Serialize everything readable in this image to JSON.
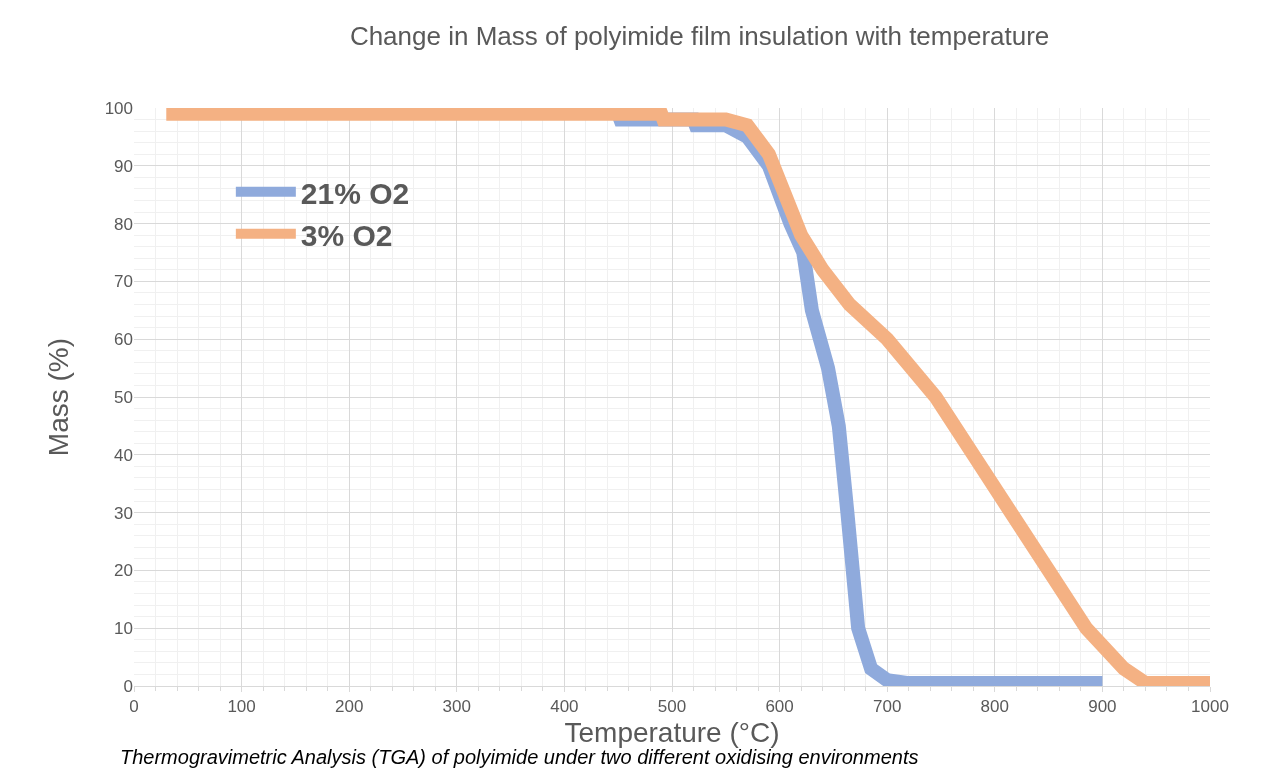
{
  "chart_data": {
    "type": "line",
    "title": "Change in Mass of polyimide film insulation with temperature",
    "xlabel": "Temperature (°C)",
    "ylabel": "Mass (%)",
    "annotations": [
      "Thermogravimetric Analysis (TGA) of polyimide under two different oxidising environments"
    ],
    "xlim": [
      0,
      1000
    ],
    "xticks": [
      0,
      100,
      200,
      300,
      400,
      500,
      600,
      700,
      800,
      900,
      1000
    ],
    "ylim": [
      0,
      100
    ],
    "yticks": [
      0,
      10,
      20,
      30,
      40,
      50,
      60,
      70,
      80,
      90,
      100
    ],
    "grid": true,
    "legend": "top left",
    "marker": "none",
    "line_style": "solid",
    "series": [
      {
        "name": "21% O2",
        "color": "#8faadc",
        "x": [
          450,
          452,
          520,
          522,
          550,
          570,
          590,
          610,
          622,
          630,
          645,
          655,
          663,
          668,
          673,
          685,
          700,
          720,
          900
        ],
        "values": [
          99,
          98,
          98,
          97,
          97,
          95,
          90,
          80,
          75,
          65,
          55,
          45,
          30,
          20,
          10,
          3,
          1,
          0.5,
          0.5
        ]
      },
      {
        "name": "3% O2",
        "color": "#f4b183",
        "x": [
          30,
          490,
          492,
          550,
          570,
          590,
          605,
          620,
          640,
          665,
          700,
          745,
          780,
          815,
          850,
          885,
          920,
          940,
          1000
        ],
        "values": [
          99,
          99,
          98,
          98,
          97,
          92,
          85,
          78,
          72,
          66,
          60,
          50,
          40,
          30,
          20,
          10,
          3,
          0.5,
          0.5
        ]
      }
    ]
  }
}
